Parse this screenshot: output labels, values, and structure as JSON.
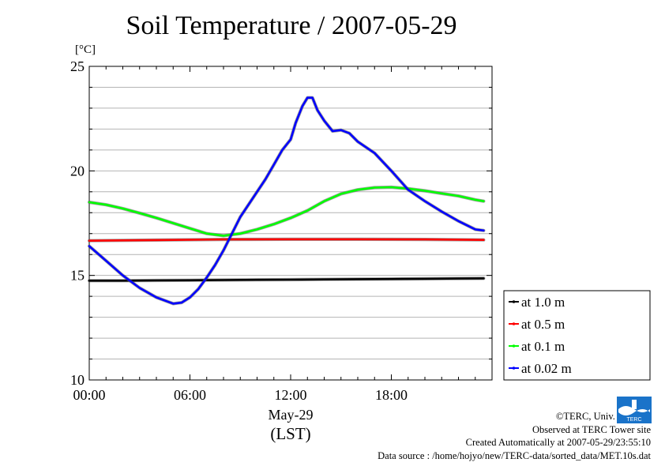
{
  "chart_data": {
    "type": "line",
    "title": "Soil Temperature / 2007-05-29",
    "ylabel": "[°C]",
    "xlabel_date": "May-29",
    "xlabel_tz": "(LST)",
    "xlim": [
      0,
      24
    ],
    "ylim": [
      10,
      25
    ],
    "yticks": [
      10,
      15,
      20,
      25
    ],
    "xticks": [
      {
        "x": 0,
        "label": "00:00"
      },
      {
        "x": 6,
        "label": "06:00"
      },
      {
        "x": 12,
        "label": "12:00"
      },
      {
        "x": 18,
        "label": "18:00"
      }
    ],
    "grid": true,
    "legend_position": "right",
    "series": [
      {
        "name": "at 1.0 m",
        "color": "#000000",
        "x": [
          0,
          2,
          4,
          6,
          8,
          10,
          12,
          14,
          16,
          18,
          20,
          22,
          23.5
        ],
        "y": [
          14.75,
          14.75,
          14.76,
          14.77,
          14.78,
          14.79,
          14.8,
          14.81,
          14.82,
          14.83,
          14.84,
          14.85,
          14.86
        ]
      },
      {
        "name": "at 0.5 m",
        "color": "#ff0000",
        "x": [
          0,
          4,
          8,
          12,
          16,
          20,
          23.5
        ],
        "y": [
          16.66,
          16.69,
          16.72,
          16.73,
          16.73,
          16.72,
          16.7
        ]
      },
      {
        "name": "at 0.1 m",
        "color": "#00ff00",
        "x": [
          0,
          1,
          2,
          3,
          4,
          5,
          6,
          7,
          8,
          9,
          10,
          11,
          12,
          13,
          14,
          15,
          16,
          17,
          18,
          19,
          20,
          21,
          22,
          23,
          23.5
        ],
        "y": [
          18.5,
          18.38,
          18.2,
          17.98,
          17.75,
          17.5,
          17.25,
          17.0,
          16.9,
          17.0,
          17.2,
          17.45,
          17.75,
          18.1,
          18.55,
          18.9,
          19.1,
          19.2,
          19.22,
          19.15,
          19.05,
          18.92,
          18.8,
          18.62,
          18.55
        ]
      },
      {
        "name": "at 0.02 m",
        "color": "#0000ff",
        "x": [
          0,
          1,
          2,
          3,
          4,
          5,
          5.5,
          6,
          6.5,
          7,
          7.5,
          8,
          9,
          10,
          10.5,
          11,
          11.5,
          12,
          12.3,
          12.7,
          13,
          13.3,
          13.6,
          14,
          14.5,
          15,
          15.5,
          16,
          17,
          18,
          19,
          20,
          21,
          22,
          23,
          23.5
        ],
        "y": [
          16.4,
          15.7,
          15.0,
          14.4,
          13.95,
          13.65,
          13.7,
          13.95,
          14.35,
          14.9,
          15.5,
          16.2,
          17.8,
          19.0,
          19.6,
          20.3,
          21.0,
          21.5,
          22.3,
          23.1,
          23.5,
          23.5,
          22.9,
          22.4,
          21.9,
          21.95,
          21.8,
          21.4,
          20.85,
          20.0,
          19.1,
          18.55,
          18.05,
          17.6,
          17.2,
          17.15
        ]
      }
    ]
  },
  "credits": {
    "copyright": "©TERC, Univ. Tsukuba",
    "observed": "Observed at TERC Tower site",
    "created": "Created Automatically at 2007-05-29/23:55:10",
    "source": "Data source : /home/hojyo/new/TERC-data/sorted_data/MET.10s.dat"
  },
  "logo": {
    "text": "TERC",
    "color": "#1a73c9"
  }
}
